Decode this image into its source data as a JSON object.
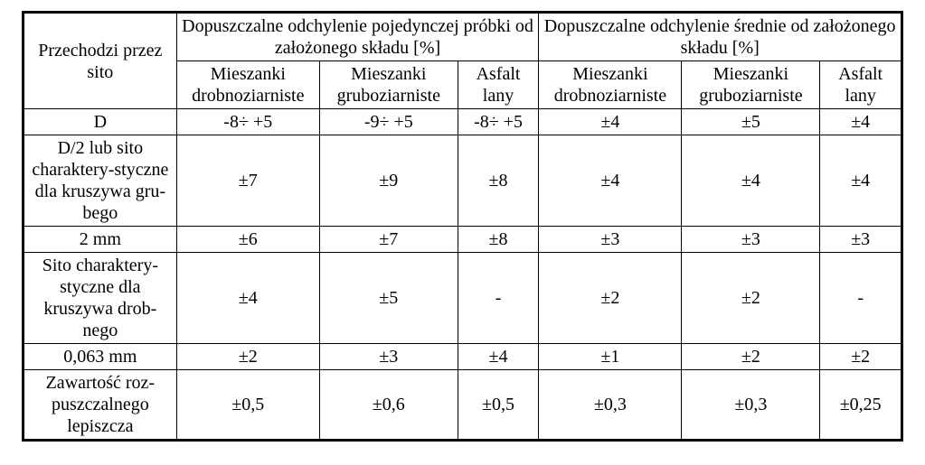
{
  "table": {
    "background": "#ffffff",
    "border_color": "#000000",
    "font_family": "Times New Roman",
    "font_size_pt": 15,
    "head": {
      "rowlabel": "Przechodzi przez sito",
      "group1": "Dopuszczalne odchylenie pojedynczej próbki od założonego składu [%]",
      "group2": "Dopuszczalne odchylenie średnie od założonego składu [%]",
      "sub": {
        "s1": "Mieszanki drobnoziarniste",
        "s2": "Mieszanki gruboziarniste",
        "s3": "Asfalt lany",
        "s4": "Mieszanki drobnoziarniste",
        "s5": "Mieszanki gruboziarniste",
        "s6": "Asfalt lany"
      }
    },
    "rows": [
      {
        "label": "D",
        "c1": "-8÷ +5",
        "c2": "-9÷ +5",
        "c3": "-8÷ +5",
        "c4": "±4",
        "c5": "±5",
        "c6": "±4"
      },
      {
        "label": "D/2 lub sito charaktery-styczne dla kruszywa gru-bego",
        "c1": "±7",
        "c2": "±9",
        "c3": "±8",
        "c4": "±4",
        "c5": "±4",
        "c6": "±4"
      },
      {
        "label": "2 mm",
        "c1": "±6",
        "c2": "±7",
        "c3": "±8",
        "c4": "±3",
        "c5": "±3",
        "c6": "±3"
      },
      {
        "label": "Sito charaktery-styczne dla kruszywa drob-nego",
        "c1": "±4",
        "c2": "±5",
        "c3": "-",
        "c4": "±2",
        "c5": "±2",
        "c6": "-"
      },
      {
        "label": "0,063 mm",
        "c1": "±2",
        "c2": "±3",
        "c3": "±4",
        "c4": "±1",
        "c5": "±2",
        "c6": "±2"
      },
      {
        "label": "Zawartość roz-puszczalnego lepiszcza",
        "c1": "±0,5",
        "c2": "±0,6",
        "c3": "±0,5",
        "c4": "±0,3",
        "c5": "±0,3",
        "c6": "±0,25"
      }
    ]
  }
}
